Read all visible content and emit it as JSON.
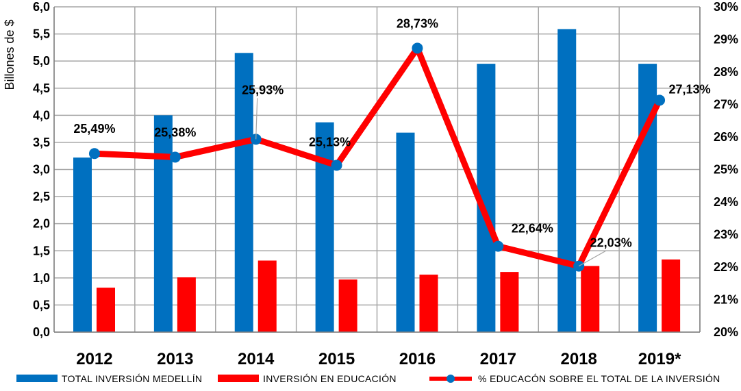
{
  "chart_data": {
    "type": "bar",
    "categories": [
      "2012",
      "2013",
      "2014",
      "2015",
      "2016",
      "2017",
      "2018",
      "2019*"
    ],
    "ylabel": "Billones de $",
    "ylim": [
      0,
      6
    ],
    "yticks": [
      "0,0",
      "0,5",
      "1,0",
      "1,5",
      "2,0",
      "2,5",
      "3,0",
      "3,5",
      "4,0",
      "4,5",
      "5,0",
      "5,5",
      "6,0"
    ],
    "y2lim": [
      20,
      30
    ],
    "y2ticks": [
      "20%",
      "21%",
      "22%",
      "23%",
      "24%",
      "25%",
      "26%",
      "27%",
      "28%",
      "29%",
      "30%"
    ],
    "grid": true,
    "legend_position": "bottom",
    "series": [
      {
        "name": "TOTAL INVERSIÓN MEDELLÍN",
        "kind": "bar",
        "color": "#0070C0",
        "values": [
          3.22,
          4.0,
          5.15,
          3.87,
          3.68,
          4.95,
          5.59,
          4.95
        ]
      },
      {
        "name": "INVERSIÓN EN EDUCACIÓN",
        "kind": "bar",
        "color": "#FF0000",
        "values": [
          0.82,
          1.01,
          1.32,
          0.97,
          1.06,
          1.11,
          1.22,
          1.34
        ]
      },
      {
        "name": "% EDUCACÓN SOBRE EL TOTAL DE LA INVERSIÓN",
        "kind": "line",
        "axis": "right",
        "color": "#FF0000",
        "marker_color": "#0070C0",
        "values": [
          25.49,
          25.38,
          25.93,
          25.13,
          28.73,
          22.64,
          22.03,
          27.13
        ],
        "labels": [
          "25,49%",
          "25,38%",
          "25,93%",
          "25,13%",
          "28,73%",
          "22,64%",
          "22,03%",
          "27,13%"
        ]
      }
    ]
  }
}
